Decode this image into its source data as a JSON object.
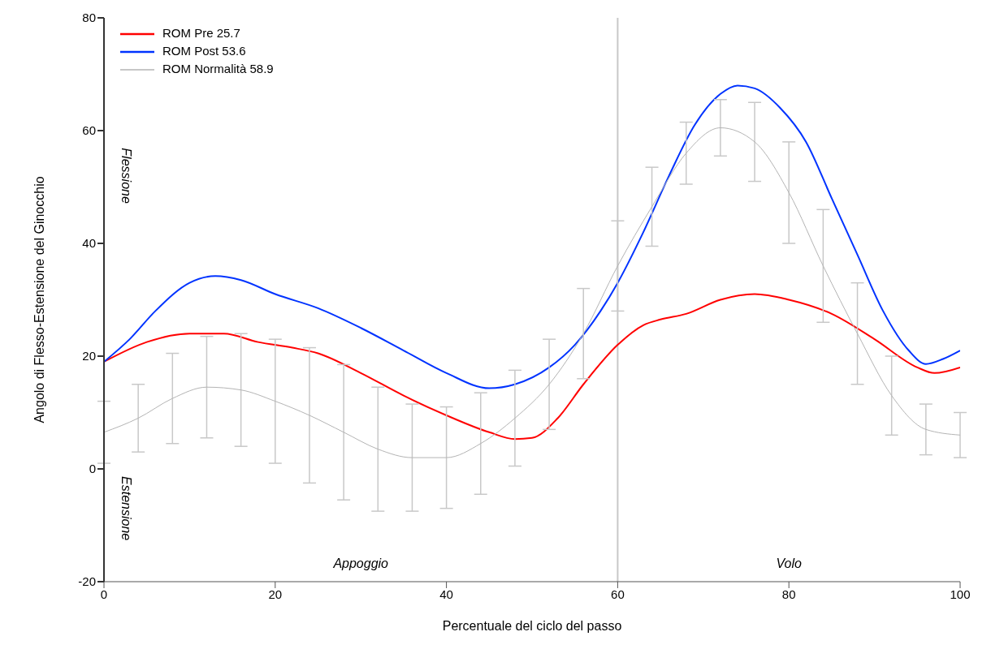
{
  "chart_data": {
    "type": "line",
    "xlabel": "Percentuale del ciclo del passo",
    "ylabel": "Angolo di Flesso-Estensione del Ginocchio",
    "xlim": [
      0,
      100
    ],
    "xticks": [
      0,
      20,
      40,
      60,
      80,
      100
    ],
    "ylim": [
      -20,
      80
    ],
    "yticks": [
      -20,
      0,
      20,
      40,
      60,
      80
    ],
    "grid": false,
    "legend": "top left",
    "marker": "none",
    "line_style": "solid",
    "series": [
      {
        "name": "ROM Pre 25.7",
        "color": "#ff0000",
        "x": [
          0,
          5,
          10,
          14,
          18,
          22,
          25,
          30,
          35,
          40,
          45,
          48,
          50,
          53,
          56,
          60,
          63,
          65,
          68,
          72,
          76,
          80,
          85,
          90,
          95,
          97,
          100
        ],
        "values": [
          19,
          22.5,
          24,
          24,
          22.5,
          21.5,
          20.5,
          17,
          13,
          9.5,
          6.5,
          5.3,
          5.5,
          9,
          15,
          22,
          25.5,
          26.5,
          27.5,
          30,
          31,
          30,
          27.5,
          23,
          18,
          17,
          18
        ]
      },
      {
        "name": "ROM Post 53.6",
        "color": "#0033ff",
        "x": [
          0,
          3,
          6,
          10,
          13,
          16,
          20,
          25,
          30,
          35,
          40,
          45,
          48,
          52,
          55,
          58,
          60,
          63,
          66,
          69,
          72,
          74,
          76,
          79,
          82,
          85,
          88,
          91,
          94,
          96,
          98,
          100
        ],
        "values": [
          19,
          23,
          28,
          33,
          34.2,
          33.5,
          31,
          28.5,
          25,
          21,
          17,
          14.3,
          15,
          18,
          22,
          28,
          33,
          42,
          52,
          61,
          66.5,
          68,
          67.5,
          64,
          58,
          48,
          38,
          28,
          21,
          18.6,
          19.5,
          21
        ]
      },
      {
        "name": "ROM Normalità 58.9",
        "color": "#b4b4b4",
        "x": [
          0,
          4,
          8,
          12,
          16,
          20,
          24,
          28,
          32,
          36,
          40,
          44,
          48,
          52,
          56,
          60,
          64,
          68,
          72,
          76,
          80,
          84,
          88,
          92,
          96,
          100
        ],
        "values": [
          6.5,
          9,
          12.5,
          14.5,
          14,
          12,
          9.5,
          6.5,
          3.5,
          2,
          2,
          4.5,
          9,
          15,
          24,
          36,
          46.5,
          56,
          60.5,
          58,
          49,
          36,
          24,
          13,
          7,
          6
        ],
        "errors": [
          5.5,
          6,
          8,
          9,
          10,
          11,
          12,
          12,
          11,
          9.5,
          9,
          9,
          8.5,
          8,
          8,
          8,
          7,
          5.5,
          5,
          7,
          9,
          10,
          9,
          7,
          4.5,
          4
        ]
      }
    ],
    "ref_lines": [
      {
        "axis": "x",
        "value": 60,
        "color": "#c8c8c8"
      }
    ],
    "annotations": [
      "Flessione",
      "Estensione",
      "Appoggio",
      "Volo"
    ]
  }
}
